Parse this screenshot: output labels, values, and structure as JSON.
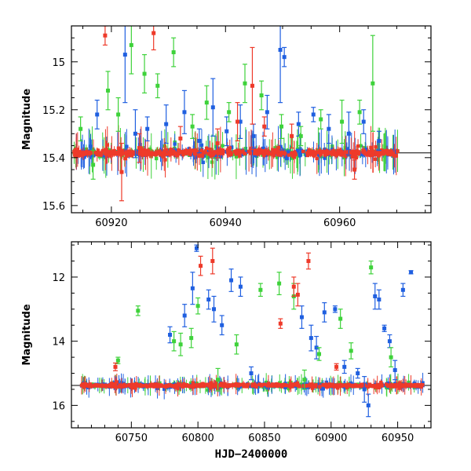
{
  "chart_data": [
    {
      "type": "scatter",
      "panel": "top",
      "title": "",
      "xlabel": "",
      "ylabel": "Magnitude",
      "xlim": [
        60913,
        60976
      ],
      "ylim": [
        15.63,
        14.85
      ],
      "y_inverted": true,
      "xticks": [
        60920,
        60940,
        60960
      ],
      "yticks": [
        15.0,
        15.2,
        15.4,
        15.6
      ],
      "ytick_labels": [
        "15",
        "15.2",
        "15.4",
        "15.6"
      ],
      "reference_line": 15.38,
      "series": [
        {
          "name": "blue",
          "color": "#1f5fe0",
          "x": [
            60917.5,
            60922.4,
            60924.2,
            60926.3,
            60929.6,
            60932.8,
            60935.4,
            60937.8,
            60940.2,
            60942.6,
            60944.9,
            60947.3,
            60949.6,
            60950.3,
            60952.8,
            60955.4,
            60958.1,
            60961.6,
            60964.2,
            60966.9
          ],
          "y": [
            15.22,
            14.97,
            15.3,
            15.28,
            15.26,
            15.21,
            15.33,
            15.19,
            15.29,
            15.25,
            15.31,
            15.21,
            14.95,
            14.98,
            15.26,
            15.22,
            15.28,
            15.3,
            15.25,
            15.33
          ],
          "yerr": [
            0.06,
            0.2,
            0.1,
            0.05,
            0.08,
            0.09,
            0.05,
            0.12,
            0.06,
            0.07,
            0.05,
            0.07,
            0.22,
            0.04,
            0.05,
            0.03,
            0.06,
            0.09,
            0.05,
            0.04
          ]
        },
        {
          "name": "green",
          "color": "#3ed23a",
          "x": [
            60914.6,
            60916.8,
            60919.4,
            60921.2,
            60923.5,
            60925.8,
            60928.1,
            60930.9,
            60934.2,
            60936.7,
            60940.6,
            60943.4,
            60946.3,
            60949.8,
            60953.2,
            60956.7,
            60960.4,
            60963.5,
            60965.8
          ],
          "y": [
            15.28,
            15.43,
            15.12,
            15.22,
            14.93,
            15.05,
            15.1,
            14.96,
            15.27,
            15.17,
            15.21,
            15.09,
            15.14,
            15.27,
            15.31,
            15.24,
            15.25,
            15.21,
            15.09
          ],
          "yerr": [
            0.05,
            0.06,
            0.08,
            0.07,
            0.12,
            0.08,
            0.05,
            0.06,
            0.05,
            0.07,
            0.04,
            0.08,
            0.06,
            0.05,
            0.04,
            0.04,
            0.09,
            0.05,
            0.2
          ]
        },
        {
          "name": "red",
          "color": "#ee3a2a",
          "x": [
            60918.9,
            60921.8,
            60924.9,
            60927.4,
            60932.1,
            60938.6,
            60942.1,
            60944.7,
            60946.8,
            60951.6,
            60962.6
          ],
          "y": [
            14.89,
            15.46,
            15.36,
            14.88,
            15.32,
            15.34,
            15.25,
            15.1,
            15.27,
            15.31,
            15.45
          ],
          "yerr": [
            0.04,
            0.12,
            0.06,
            0.07,
            0.05,
            0.06,
            0.08,
            0.16,
            0.04,
            0.05,
            0.04
          ]
        }
      ]
    },
    {
      "type": "scatter",
      "panel": "bottom",
      "title": "",
      "xlabel": "HJD−2400000",
      "ylabel": "Magnitude",
      "xlim": [
        60705,
        60975
      ],
      "ylim": [
        16.7,
        10.9
      ],
      "y_inverted": true,
      "xticks": [
        60750,
        60800,
        60850,
        60900,
        60950
      ],
      "yticks": [
        12,
        14,
        16
      ],
      "ytick_labels": [
        "12",
        "14",
        "16"
      ],
      "reference_line": 15.38,
      "series": [
        {
          "name": "blue",
          "color": "#1f5fe0",
          "x": [
            60779,
            60790,
            60796,
            60799,
            60808,
            60812,
            60818,
            60825,
            60832,
            60840,
            60878,
            60885,
            60889,
            60895,
            60903,
            60910,
            60920,
            60925,
            60928,
            60933,
            60936,
            60940,
            60944,
            60948,
            60954,
            60960
          ],
          "y": [
            13.8,
            13.2,
            12.35,
            11.1,
            12.7,
            13.0,
            13.5,
            12.1,
            12.3,
            15.0,
            13.25,
            13.9,
            14.2,
            13.1,
            13.0,
            14.8,
            15.0,
            15.5,
            16.0,
            12.6,
            12.7,
            13.6,
            14.0,
            14.9,
            12.4,
            11.85
          ],
          "yerr": [
            0.25,
            0.35,
            0.5,
            0.1,
            0.3,
            0.4,
            0.3,
            0.35,
            0.3,
            0.2,
            0.35,
            0.4,
            0.35,
            0.3,
            0.1,
            0.2,
            0.15,
            0.4,
            0.35,
            0.4,
            0.3,
            0.1,
            0.2,
            0.3,
            0.2,
            0.05
          ]
        },
        {
          "name": "green",
          "color": "#3ed23a",
          "x": [
            60740,
            60755,
            60782,
            60787,
            60795,
            60800,
            60815,
            60829,
            60847,
            60861,
            60872,
            60880,
            60891,
            60907,
            60915,
            60930,
            60945
          ],
          "y": [
            14.6,
            13.05,
            14.0,
            14.1,
            13.9,
            12.9,
            15.2,
            14.1,
            12.4,
            12.2,
            12.6,
            15.2,
            14.4,
            13.3,
            14.3,
            11.7,
            14.5
          ],
          "yerr": [
            0.1,
            0.15,
            0.3,
            0.35,
            0.3,
            0.25,
            0.35,
            0.3,
            0.2,
            0.35,
            0.4,
            0.3,
            0.2,
            0.3,
            0.25,
            0.2,
            0.3
          ]
        },
        {
          "name": "red",
          "color": "#ee3a2a",
          "x": [
            60738,
            60802,
            60811,
            60862,
            60872,
            60875,
            60883,
            60904
          ],
          "y": [
            14.8,
            11.65,
            11.5,
            13.45,
            12.3,
            12.55,
            11.5,
            14.8
          ],
          "yerr": [
            0.12,
            0.3,
            0.4,
            0.15,
            0.3,
            0.35,
            0.25,
            0.1
          ]
        }
      ]
    }
  ]
}
